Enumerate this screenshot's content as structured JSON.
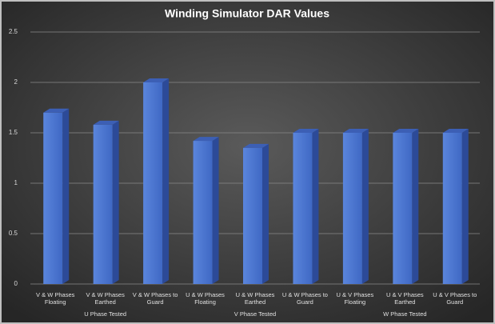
{
  "chart_data": {
    "type": "bar3d",
    "title": "Winding Simulator DAR Values",
    "categories": [
      "V & W Phases Floating",
      "V & W Phases Earthed",
      "V & W Phases to Guard",
      "U & W Phases Floating",
      "U & W Phases Earthed",
      "U & W Phases to Guard",
      "U & V Phases Floating",
      "U & V Phases Earthed",
      "U & V Phases to Guard"
    ],
    "groups": [
      "U Phase Tested",
      "V Phase Tested",
      "W Phase Tested"
    ],
    "values": [
      1.7,
      1.58,
      2.0,
      1.42,
      1.35,
      1.5,
      1.5,
      1.5,
      1.5
    ],
    "color": "#4a74d0",
    "ylim": [
      0,
      2.5
    ],
    "yticks": [
      0,
      0.5,
      1,
      1.5,
      2,
      2.5
    ],
    "grid": true
  }
}
